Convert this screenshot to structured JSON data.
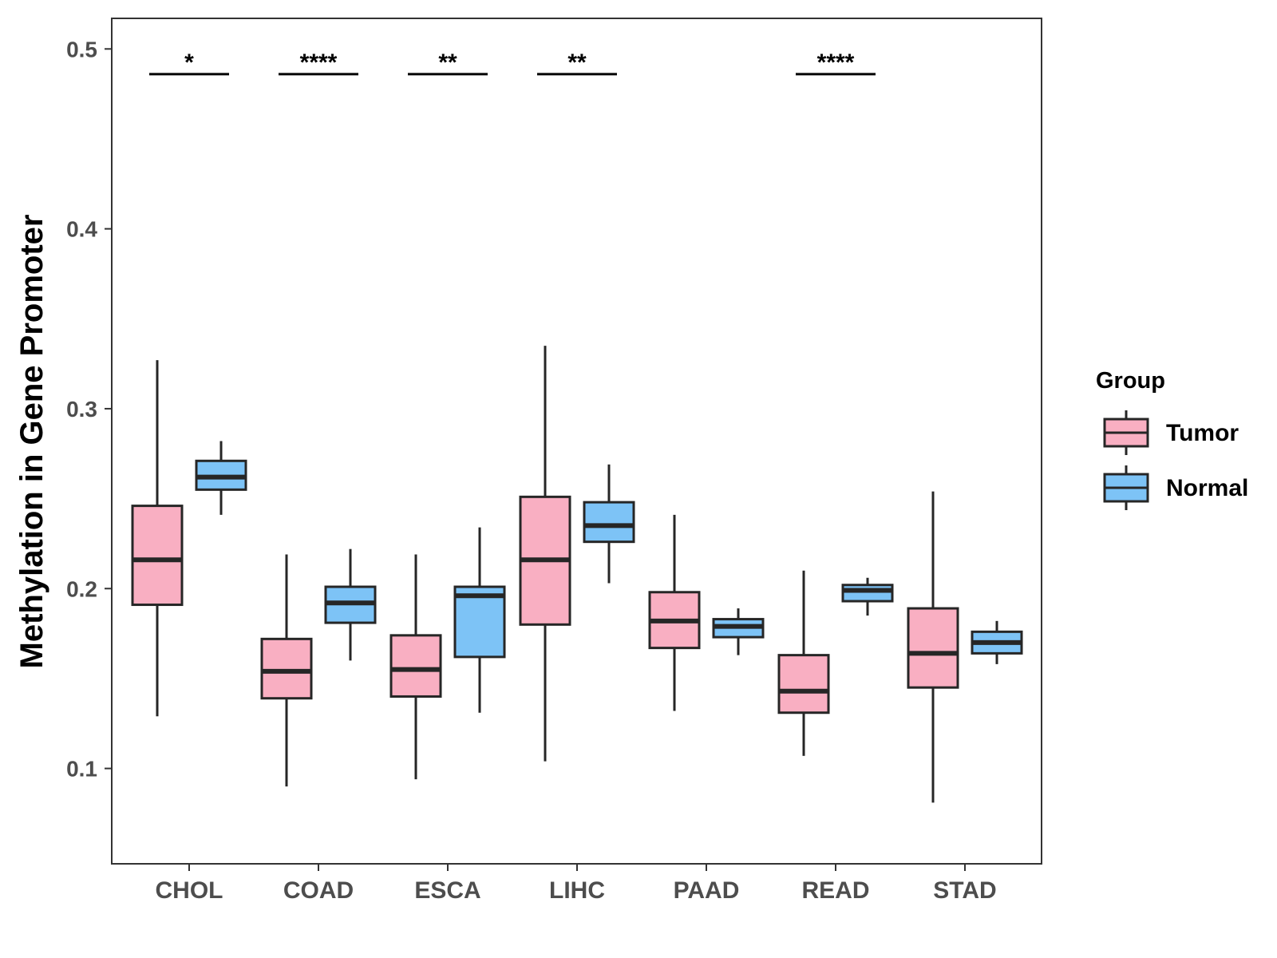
{
  "chart_data": {
    "type": "boxplot",
    "title": "",
    "xlabel": "",
    "ylabel": "Methylation in Gene Promoter",
    "ylim": [
      0.047,
      0.517
    ],
    "yticks": [
      0.1,
      0.2,
      0.3,
      0.4,
      0.5
    ],
    "ytick_labels": [
      "0.1",
      "0.2",
      "0.3",
      "0.4",
      "0.5"
    ],
    "categories": [
      "CHOL",
      "COAD",
      "ESCA",
      "LIHC",
      "PAAD",
      "READ",
      "STAD"
    ],
    "grid": false,
    "legend": {
      "title": "Group",
      "position": "right"
    },
    "series": [
      {
        "name": "Tumor",
        "color": "#F9AFC2",
        "boxes": [
          {
            "min": 0.129,
            "q1": 0.191,
            "median": 0.216,
            "q3": 0.246,
            "max": 0.327
          },
          {
            "min": 0.09,
            "q1": 0.139,
            "median": 0.154,
            "q3": 0.172,
            "max": 0.219
          },
          {
            "min": 0.094,
            "q1": 0.14,
            "median": 0.155,
            "q3": 0.174,
            "max": 0.219
          },
          {
            "min": 0.104,
            "q1": 0.18,
            "median": 0.216,
            "q3": 0.251,
            "max": 0.335
          },
          {
            "min": 0.132,
            "q1": 0.167,
            "median": 0.182,
            "q3": 0.198,
            "max": 0.241
          },
          {
            "min": 0.107,
            "q1": 0.131,
            "median": 0.143,
            "q3": 0.163,
            "max": 0.21
          },
          {
            "min": 0.081,
            "q1": 0.145,
            "median": 0.164,
            "q3": 0.189,
            "max": 0.254
          }
        ]
      },
      {
        "name": "Normal",
        "color": "#7DC3F6",
        "boxes": [
          {
            "min": 0.241,
            "q1": 0.255,
            "median": 0.262,
            "q3": 0.271,
            "max": 0.282
          },
          {
            "min": 0.16,
            "q1": 0.181,
            "median": 0.192,
            "q3": 0.201,
            "max": 0.222
          },
          {
            "min": 0.131,
            "q1": 0.162,
            "median": 0.196,
            "q3": 0.201,
            "max": 0.234
          },
          {
            "min": 0.203,
            "q1": 0.226,
            "median": 0.235,
            "q3": 0.248,
            "max": 0.269
          },
          {
            "min": 0.163,
            "q1": 0.173,
            "median": 0.179,
            "q3": 0.183,
            "max": 0.189
          },
          {
            "min": 0.185,
            "q1": 0.193,
            "median": 0.199,
            "q3": 0.202,
            "max": 0.206
          },
          {
            "min": 0.158,
            "q1": 0.164,
            "median": 0.17,
            "q3": 0.176,
            "max": 0.182
          }
        ]
      }
    ],
    "significance": [
      {
        "category": "CHOL",
        "label": "*",
        "y": 0.486
      },
      {
        "category": "COAD",
        "label": "****",
        "y": 0.486
      },
      {
        "category": "ESCA",
        "label": "**",
        "y": 0.486
      },
      {
        "category": "LIHC",
        "label": "**",
        "y": 0.486
      },
      {
        "category": "READ",
        "label": "****",
        "y": 0.486
      }
    ]
  }
}
